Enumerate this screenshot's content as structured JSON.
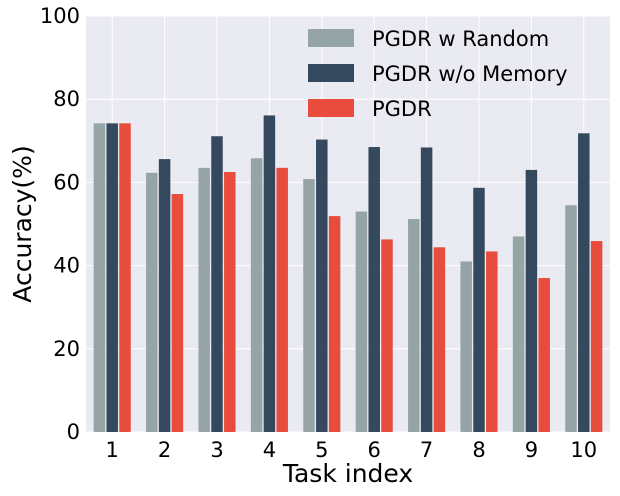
{
  "chart_data": {
    "type": "bar",
    "title": "",
    "xlabel": "Task index",
    "ylabel": "Accuracy(%)",
    "ylim": [
      0,
      100
    ],
    "yticks": [
      "0",
      "20",
      "40",
      "60",
      "80",
      "100"
    ],
    "categories": [
      "1",
      "2",
      "3",
      "4",
      "5",
      "6",
      "7",
      "8",
      "9",
      "10"
    ],
    "grid": true,
    "legend_position": "top-right",
    "series": [
      {
        "name": "PGDR w Random",
        "color": "#95a5a6",
        "values": [
          74.2,
          62.3,
          63.5,
          65.8,
          60.8,
          53.0,
          51.2,
          41.0,
          47.0,
          54.5
        ]
      },
      {
        "name": "PGDR w/o Memory",
        "color": "#34495e",
        "values": [
          74.2,
          65.6,
          71.1,
          76.1,
          70.3,
          68.5,
          68.4,
          58.7,
          63.0,
          71.8
        ]
      },
      {
        "name": "PGDR",
        "color": "#e74c3c",
        "values": [
          74.2,
          57.2,
          62.5,
          63.5,
          51.9,
          46.3,
          44.4,
          43.4,
          37.0,
          45.9
        ]
      }
    ]
  }
}
